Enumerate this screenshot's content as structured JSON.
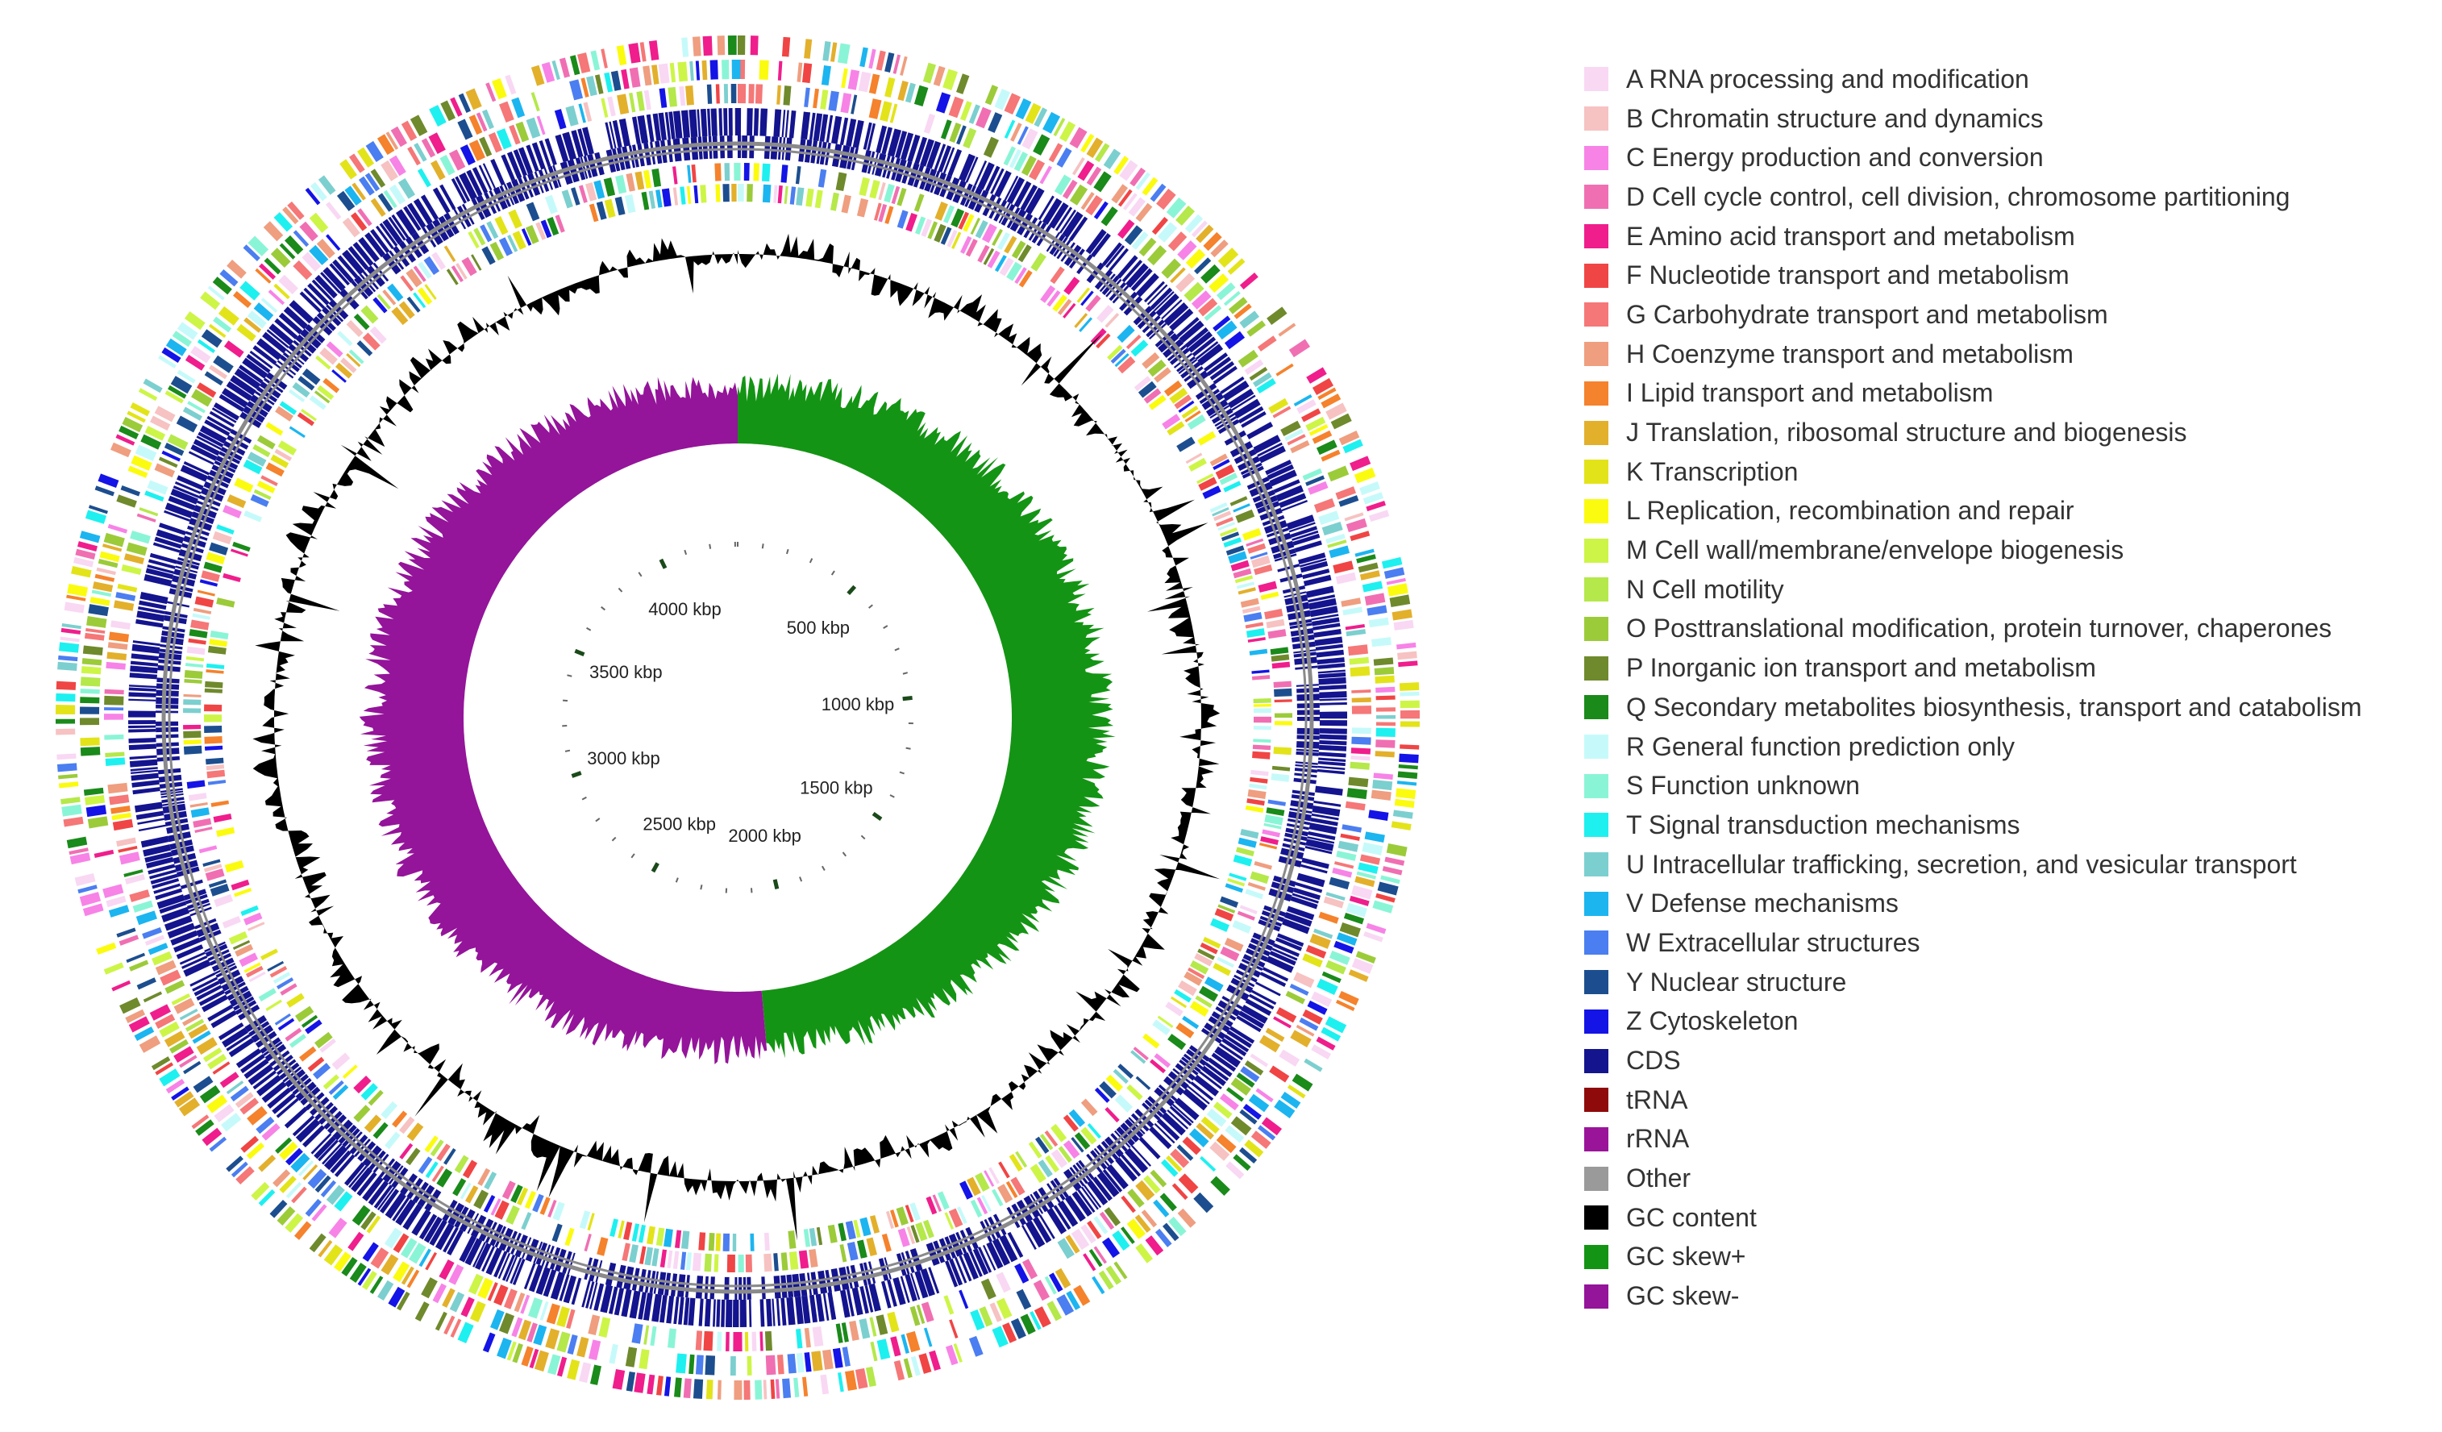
{
  "diagram": {
    "type": "circular-genome-map",
    "genome_size_kbp": 4310,
    "tick_labels": [
      {
        "position_kbp": 500,
        "label": "500 kbp"
      },
      {
        "position_kbp": 1000,
        "label": "1000 kbp"
      },
      {
        "position_kbp": 1500,
        "label": "1500 kbp"
      },
      {
        "position_kbp": 2000,
        "label": "2000 kbp"
      },
      {
        "position_kbp": 2500,
        "label": "2500 kbp"
      },
      {
        "position_kbp": 3000,
        "label": "3000 kbp"
      },
      {
        "position_kbp": 3500,
        "label": "3500 kbp"
      },
      {
        "position_kbp": 4000,
        "label": "4000 kbp"
      }
    ],
    "gc_skew_switch_kbp": 2095
  },
  "legend": {
    "items": [
      {
        "label": "A RNA processing and modification",
        "color": "#f9d8f4"
      },
      {
        "label": "B Chromatin structure and dynamics",
        "color": "#f7c2c2"
      },
      {
        "label": "C Energy production and conversion",
        "color": "#f783e7"
      },
      {
        "label": "D Cell cycle control, cell division, chromosome partitioning",
        "color": "#f06fb3"
      },
      {
        "label": "E Amino acid transport and metabolism",
        "color": "#ef1e8c"
      },
      {
        "label": "F Nucleotide transport and metabolism",
        "color": "#f04545"
      },
      {
        "label": "G Carbohydrate transport and metabolism",
        "color": "#f57777"
      },
      {
        "label": "H Coenzyme transport and metabolism",
        "color": "#ef9e80"
      },
      {
        "label": "I Lipid transport and metabolism",
        "color": "#f5822c"
      },
      {
        "label": "J Translation, ribosomal structure and biogenesis",
        "color": "#e3b02c"
      },
      {
        "label": "K Transcription",
        "color": "#e3e31a"
      },
      {
        "label": "L Replication, recombination and repair",
        "color": "#fbfb10"
      },
      {
        "label": "M Cell wall/membrane/envelope biogenesis",
        "color": "#cdf547"
      },
      {
        "label": "N Cell motility",
        "color": "#b5e84a"
      },
      {
        "label": "O Posttranslational modification, protein turnover, chaperones",
        "color": "#9ccb3a"
      },
      {
        "label": "P Inorganic ion transport and metabolism",
        "color": "#6f8a2c"
      },
      {
        "label": "Q Secondary metabolites biosynthesis, transport and catabolism",
        "color": "#1a8a1a"
      },
      {
        "label": "R General function prediction only",
        "color": "#c6fafa"
      },
      {
        "label": "S Function unknown",
        "color": "#8af5d6"
      },
      {
        "label": "T Signal transduction mechanisms",
        "color": "#1ef0f0"
      },
      {
        "label": "U Intracellular trafficking, secretion, and vesicular transport",
        "color": "#7ccfcf"
      },
      {
        "label": "V Defense mechanisms",
        "color": "#1cb5f0"
      },
      {
        "label": "W Extracellular structures",
        "color": "#4b7ef0"
      },
      {
        "label": "Y Nuclear structure",
        "color": "#1c4e8f"
      },
      {
        "label": "Z Cytoskeleton",
        "color": "#1414e6"
      },
      {
        "label": "CDS",
        "color": "#14148f"
      },
      {
        "label": "tRNA",
        "color": "#8f0a0a"
      },
      {
        "label": "rRNA",
        "color": "#9a149a"
      },
      {
        "label": "Other",
        "color": "#9a9a9a"
      },
      {
        "label": "GC content",
        "color": "#000000"
      },
      {
        "label": "GC skew+",
        "color": "#149414"
      },
      {
        "label": "GC skew-",
        "color": "#94149a"
      }
    ]
  }
}
